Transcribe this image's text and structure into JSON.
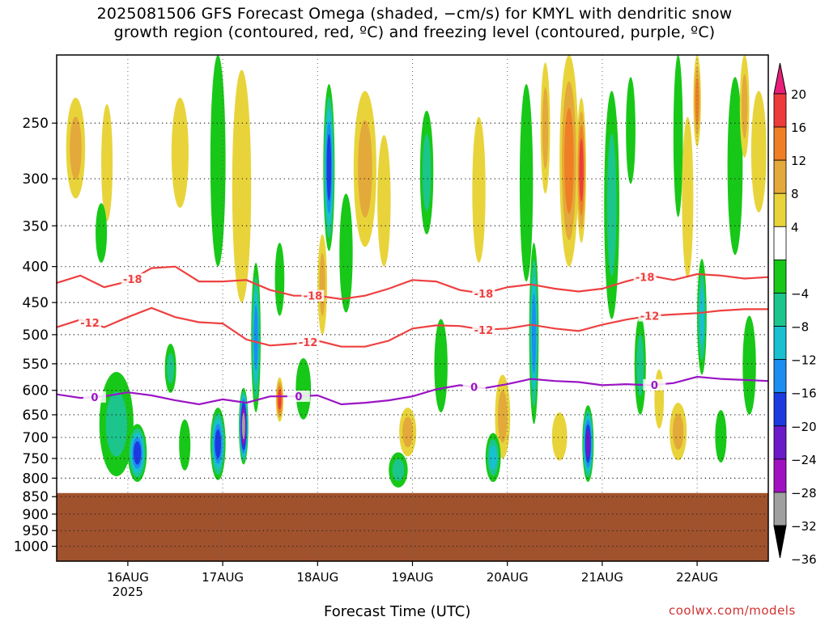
{
  "chart_data": {
    "type": "heatmap",
    "title_lines": [
      "2025081506 GFS Forecast Omega (shaded, −cm/s) for KMYL with dendritic snow",
      "growth region (contoured, red, ºC) and freezing level (contoured, purple, ºC)"
    ],
    "xlabel": "Forecast Time (UTC)",
    "ylabel": "",
    "credit": "coolwx.com/models",
    "x_range_days": [
      15.25,
      22.75
    ],
    "x_ticks": [
      {
        "day": 16,
        "label": "16AUG",
        "sublabel": "2025"
      },
      {
        "day": 17,
        "label": "17AUG",
        "sublabel": ""
      },
      {
        "day": 18,
        "label": "18AUG",
        "sublabel": ""
      },
      {
        "day": 19,
        "label": "19AUG",
        "sublabel": ""
      },
      {
        "day": 20,
        "label": "20AUG",
        "sublabel": ""
      },
      {
        "day": 21,
        "label": "21AUG",
        "sublabel": ""
      },
      {
        "day": 22,
        "label": "22AUG",
        "sublabel": ""
      }
    ],
    "y_scale": "log-pressure",
    "y_range_hpa": [
      1050,
      200
    ],
    "y_ticks": [
      250,
      300,
      350,
      400,
      450,
      500,
      550,
      600,
      650,
      700,
      750,
      800,
      850,
      900,
      950,
      1000
    ],
    "grid": true,
    "ground_below_hpa": 840,
    "colorbar": {
      "labels": [
        "20",
        "16",
        "12",
        "8",
        "4",
        "−4",
        "−8",
        "−12",
        "−16",
        "−20",
        "−24",
        "−28",
        "−32",
        "−36"
      ],
      "bands": [
        {
          "min": 16,
          "max": 20,
          "color": "#ee3c3c"
        },
        {
          "min": 12,
          "max": 16,
          "color": "#ef7f25"
        },
        {
          "min": 8,
          "max": 12,
          "color": "#e3a93a"
        },
        {
          "min": 4,
          "max": 8,
          "color": "#e8d43a"
        },
        {
          "min": -4,
          "max": 4,
          "color": "#ffffff"
        },
        {
          "min": -8,
          "max": -4,
          "color": "#18c818"
        },
        {
          "min": -12,
          "max": -8,
          "color": "#1bc58c"
        },
        {
          "min": -16,
          "max": -12,
          "color": "#18c0d0"
        },
        {
          "min": -20,
          "max": -16,
          "color": "#1b8ef0"
        },
        {
          "min": -24,
          "max": -20,
          "color": "#1c3ae0"
        },
        {
          "min": -28,
          "max": -24,
          "color": "#6a1ac8"
        },
        {
          "min": -32,
          "max": -28,
          "color": "#a012c0"
        },
        {
          "min": -36,
          "max": -32,
          "color": "#a0a0a0"
        }
      ],
      "top_arrow_color": "#e8207a",
      "bottom_arrow_color": "#000000"
    },
    "ground_color": "#a0522d",
    "contours": [
      {
        "label": "-18",
        "color": "#ee4040",
        "points": [
          [
            15.25,
            422
          ],
          [
            15.5,
            412
          ],
          [
            15.75,
            428
          ],
          [
            16,
            420
          ],
          [
            16.25,
            402
          ],
          [
            16.5,
            400
          ],
          [
            16.75,
            420
          ],
          [
            17,
            420
          ],
          [
            17.25,
            418
          ],
          [
            17.5,
            432
          ],
          [
            17.75,
            440
          ],
          [
            18,
            440
          ],
          [
            18.25,
            445
          ],
          [
            18.5,
            440
          ],
          [
            18.75,
            430
          ],
          [
            19,
            418
          ],
          [
            19.25,
            420
          ],
          [
            19.5,
            432
          ],
          [
            19.75,
            437
          ],
          [
            20,
            428
          ],
          [
            20.25,
            424
          ],
          [
            20.5,
            430
          ],
          [
            20.75,
            434
          ],
          [
            21,
            430
          ],
          [
            21.25,
            420
          ],
          [
            21.5,
            412
          ],
          [
            21.75,
            418
          ],
          [
            22,
            410
          ],
          [
            22.25,
            412
          ],
          [
            22.5,
            416
          ],
          [
            22.75,
            414
          ]
        ],
        "labels_at": [
          16.05,
          17.95,
          19.75,
          21.45
        ]
      },
      {
        "label": "-12",
        "color": "#ee4040",
        "points": [
          [
            15.25,
            488
          ],
          [
            15.5,
            476
          ],
          [
            15.75,
            488
          ],
          [
            16,
            472
          ],
          [
            16.25,
            458
          ],
          [
            16.5,
            472
          ],
          [
            16.75,
            480
          ],
          [
            17,
            482
          ],
          [
            17.25,
            508
          ],
          [
            17.5,
            518
          ],
          [
            17.75,
            515
          ],
          [
            18,
            510
          ],
          [
            18.25,
            520
          ],
          [
            18.5,
            520
          ],
          [
            18.75,
            510
          ],
          [
            19,
            490
          ],
          [
            19.25,
            485
          ],
          [
            19.5,
            486
          ],
          [
            19.75,
            492
          ],
          [
            20,
            490
          ],
          [
            20.25,
            484
          ],
          [
            20.5,
            490
          ],
          [
            20.75,
            494
          ],
          [
            21,
            484
          ],
          [
            21.25,
            476
          ],
          [
            21.5,
            470
          ],
          [
            21.75,
            468
          ],
          [
            22,
            466
          ],
          [
            22.25,
            462
          ],
          [
            22.5,
            460
          ],
          [
            22.75,
            460
          ]
        ],
        "labels_at": [
          15.6,
          17.9,
          19.75,
          21.5
        ]
      },
      {
        "label": "0",
        "color": "#9a14c4",
        "points": [
          [
            15.25,
            608
          ],
          [
            15.5,
            615
          ],
          [
            15.75,
            612
          ],
          [
            16,
            604
          ],
          [
            16.25,
            610
          ],
          [
            16.5,
            620
          ],
          [
            16.75,
            628
          ],
          [
            17,
            618
          ],
          [
            17.25,
            625
          ],
          [
            17.5,
            612
          ],
          [
            17.75,
            612
          ],
          [
            18,
            610
          ],
          [
            18.25,
            628
          ],
          [
            18.5,
            625
          ],
          [
            18.75,
            620
          ],
          [
            19,
            612
          ],
          [
            19.25,
            598
          ],
          [
            19.5,
            590
          ],
          [
            19.75,
            596
          ],
          [
            20,
            588
          ],
          [
            20.25,
            578
          ],
          [
            20.5,
            582
          ],
          [
            20.75,
            584
          ],
          [
            21,
            590
          ],
          [
            21.25,
            588
          ],
          [
            21.5,
            590
          ],
          [
            21.75,
            586
          ],
          [
            22,
            574
          ],
          [
            22.25,
            578
          ],
          [
            22.5,
            580
          ],
          [
            22.75,
            582
          ]
        ],
        "labels_at": [
          15.65,
          17.8,
          19.65,
          21.55
        ]
      }
    ],
    "omega_blobs": [
      {
        "day": 15.45,
        "hpa": 275,
        "rx_days": 0.1,
        "h_hpa": 90,
        "value": 9
      },
      {
        "day": 15.78,
        "hpa": 290,
        "rx_days": 0.06,
        "h_hpa": 110,
        "value": 5
      },
      {
        "day": 15.72,
        "hpa": 360,
        "rx_days": 0.06,
        "h_hpa": 70,
        "value": -6
      },
      {
        "day": 15.88,
        "hpa": 680,
        "rx_days": 0.18,
        "h_hpa": 230,
        "value": -8
      },
      {
        "day": 16.1,
        "hpa": 740,
        "rx_days": 0.1,
        "h_hpa": 140,
        "value": -22
      },
      {
        "day": 16.55,
        "hpa": 280,
        "rx_days": 0.09,
        "h_hpa": 100,
        "value": 6
      },
      {
        "day": 16.45,
        "hpa": 560,
        "rx_days": 0.06,
        "h_hpa": 90,
        "value": -8
      },
      {
        "day": 16.6,
        "hpa": 720,
        "rx_days": 0.06,
        "h_hpa": 120,
        "value": -6
      },
      {
        "day": 16.95,
        "hpa": 300,
        "rx_days": 0.08,
        "h_hpa": 200,
        "value": -7
      },
      {
        "day": 17.2,
        "hpa": 330,
        "rx_days": 0.1,
        "h_hpa": 240,
        "value": 6
      },
      {
        "day": 16.95,
        "hpa": 720,
        "rx_days": 0.08,
        "h_hpa": 170,
        "value": -22
      },
      {
        "day": 17.22,
        "hpa": 680,
        "rx_days": 0.05,
        "h_hpa": 170,
        "value": -34
      },
      {
        "day": 17.35,
        "hpa": 520,
        "rx_days": 0.05,
        "h_hpa": 250,
        "value": -18
      },
      {
        "day": 17.6,
        "hpa": 620,
        "rx_days": 0.04,
        "h_hpa": 90,
        "value": 16
      },
      {
        "day": 17.6,
        "hpa": 420,
        "rx_days": 0.05,
        "h_hpa": 100,
        "value": -6
      },
      {
        "day": 18.12,
        "hpa": 300,
        "rx_days": 0.06,
        "h_hpa": 160,
        "value": -22
      },
      {
        "day": 18.05,
        "hpa": 430,
        "rx_days": 0.05,
        "h_hpa": 140,
        "value": 8
      },
      {
        "day": 17.85,
        "hpa": 600,
        "rx_days": 0.08,
        "h_hpa": 120,
        "value": -7
      },
      {
        "day": 18.5,
        "hpa": 300,
        "rx_days": 0.12,
        "h_hpa": 150,
        "value": 10
      },
      {
        "day": 18.7,
        "hpa": 330,
        "rx_days": 0.07,
        "h_hpa": 140,
        "value": 6
      },
      {
        "day": 18.3,
        "hpa": 390,
        "rx_days": 0.07,
        "h_hpa": 150,
        "value": -6
      },
      {
        "day": 18.95,
        "hpa": 690,
        "rx_days": 0.09,
        "h_hpa": 110,
        "value": 11
      },
      {
        "day": 18.85,
        "hpa": 780,
        "rx_days": 0.1,
        "h_hpa": 90,
        "value": -9
      },
      {
        "day": 19.15,
        "hpa": 300,
        "rx_days": 0.07,
        "h_hpa": 120,
        "value": -8
      },
      {
        "day": 19.3,
        "hpa": 560,
        "rx_days": 0.07,
        "h_hpa": 170,
        "value": -7
      },
      {
        "day": 19.7,
        "hpa": 320,
        "rx_days": 0.07,
        "h_hpa": 150,
        "value": 5
      },
      {
        "day": 19.95,
        "hpa": 660,
        "rx_days": 0.08,
        "h_hpa": 180,
        "value": 10
      },
      {
        "day": 19.85,
        "hpa": 750,
        "rx_days": 0.08,
        "h_hpa": 120,
        "value": -12
      },
      {
        "day": 20.2,
        "hpa": 320,
        "rx_days": 0.07,
        "h_hpa": 200,
        "value": -7
      },
      {
        "day": 20.28,
        "hpa": 520,
        "rx_days": 0.05,
        "h_hpa": 300,
        "value": -16
      },
      {
        "day": 20.4,
        "hpa": 260,
        "rx_days": 0.05,
        "h_hpa": 110,
        "value": 8
      },
      {
        "day": 20.65,
        "hpa": 290,
        "rx_days": 0.1,
        "h_hpa": 220,
        "value": 14
      },
      {
        "day": 20.78,
        "hpa": 300,
        "rx_days": 0.05,
        "h_hpa": 140,
        "value": 18
      },
      {
        "day": 20.85,
        "hpa": 720,
        "rx_days": 0.06,
        "h_hpa": 180,
        "value": -24
      },
      {
        "day": 20.55,
        "hpa": 700,
        "rx_days": 0.08,
        "h_hpa": 110,
        "value": 5
      },
      {
        "day": 21.1,
        "hpa": 350,
        "rx_days": 0.08,
        "h_hpa": 250,
        "value": -8
      },
      {
        "day": 21.3,
        "hpa": 260,
        "rx_days": 0.05,
        "h_hpa": 90,
        "value": -7
      },
      {
        "day": 21.4,
        "hpa": 560,
        "rx_days": 0.06,
        "h_hpa": 180,
        "value": -9
      },
      {
        "day": 21.6,
        "hpa": 620,
        "rx_days": 0.05,
        "h_hpa": 120,
        "value": 5
      },
      {
        "day": 21.8,
        "hpa": 260,
        "rx_days": 0.05,
        "h_hpa": 160,
        "value": -7
      },
      {
        "day": 21.9,
        "hpa": 330,
        "rx_days": 0.06,
        "h_hpa": 170,
        "value": 6
      },
      {
        "day": 22.0,
        "hpa": 230,
        "rx_days": 0.04,
        "h_hpa": 80,
        "value": 14
      },
      {
        "day": 21.8,
        "hpa": 690,
        "rx_days": 0.09,
        "h_hpa": 130,
        "value": 10
      },
      {
        "day": 22.05,
        "hpa": 480,
        "rx_days": 0.05,
        "h_hpa": 180,
        "value": -12
      },
      {
        "day": 22.4,
        "hpa": 300,
        "rx_days": 0.08,
        "h_hpa": 170,
        "value": -7
      },
      {
        "day": 22.5,
        "hpa": 240,
        "rx_days": 0.05,
        "h_hpa": 80,
        "value": 8
      },
      {
        "day": 22.65,
        "hpa": 280,
        "rx_days": 0.08,
        "h_hpa": 110,
        "value": 5
      },
      {
        "day": 22.55,
        "hpa": 560,
        "rx_days": 0.07,
        "h_hpa": 180,
        "value": -7
      },
      {
        "day": 22.25,
        "hpa": 700,
        "rx_days": 0.06,
        "h_hpa": 120,
        "value": -6
      }
    ]
  }
}
